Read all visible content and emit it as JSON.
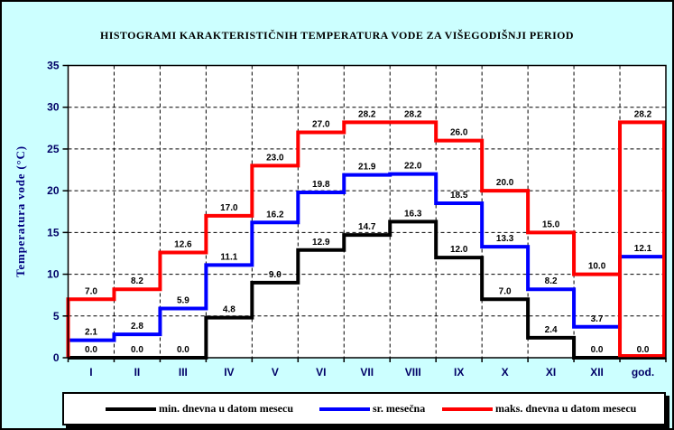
{
  "chart_data": {
    "type": "step-line-histogram",
    "title": "HISTOGRAMI KARAKTERISTIČNIH TEMPERATURA VODE ZA VIŠEGODIŠNJI PERIOD",
    "ylabel": "Temperatura vode (°C)",
    "ylim": [
      0,
      35
    ],
    "ytick_step": 5,
    "grid": true,
    "legend_position": "bottom",
    "categories": [
      "I",
      "II",
      "III",
      "IV",
      "V",
      "VI",
      "VII",
      "VIII",
      "IX",
      "X",
      "XI",
      "XII",
      "god."
    ],
    "series": [
      {
        "name": "min. dnevna u datom mesecu",
        "color": "#000000",
        "values": [
          0.0,
          0.0,
          0.0,
          4.8,
          9.0,
          12.9,
          14.7,
          16.3,
          12.0,
          7.0,
          2.4,
          0.0,
          0.0
        ]
      },
      {
        "name": "sr. mesečna",
        "color": "#0000ff",
        "values": [
          2.1,
          2.8,
          5.9,
          11.1,
          16.2,
          19.8,
          21.9,
          22.0,
          18.5,
          13.3,
          8.2,
          3.7,
          12.1
        ]
      },
      {
        "name": "maks. dnevna u datom mesecu",
        "color": "#ff0000",
        "values": [
          7.0,
          8.2,
          12.6,
          17.0,
          23.0,
          27.0,
          28.2,
          28.2,
          26.0,
          20.0,
          15.0,
          10.0,
          28.2
        ],
        "leading_edge_from_zero": true,
        "last_category_box": true
      }
    ]
  },
  "colors": {
    "background": "#ccffff",
    "plot_background": "#ffffff",
    "plot_border": "#000000",
    "gridline": "#000000",
    "axis_tick_text": "#000066",
    "axis_title_text": "#000080",
    "title_text": "#000000",
    "data_label_text": "#000000"
  }
}
